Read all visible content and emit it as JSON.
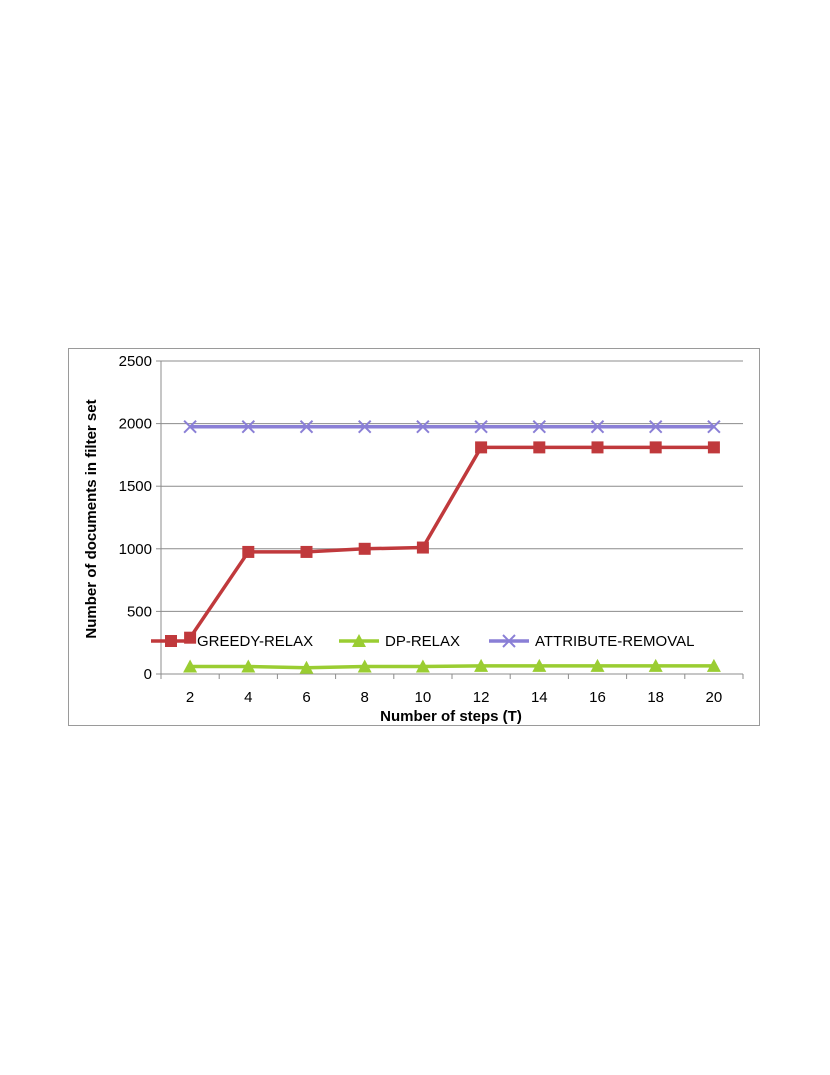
{
  "chart_data": {
    "type": "line",
    "title": "",
    "xlabel": "Number of steps (T)",
    "ylabel": "Number of documents in filter set",
    "x": [
      2,
      4,
      6,
      8,
      10,
      12,
      14,
      16,
      18,
      20
    ],
    "x_tick_labels": [
      "2",
      "4",
      "6",
      "8",
      "10",
      "12",
      "14",
      "16",
      "18",
      "20"
    ],
    "ylim": [
      0,
      2500
    ],
    "y_ticks": [
      0,
      500,
      1000,
      1500,
      2000,
      2500
    ],
    "y_tick_labels": [
      "0",
      "500",
      "1000",
      "1500",
      "2000",
      "2500"
    ],
    "grid": "horizontal",
    "legend_position": "inside-bottom",
    "series": [
      {
        "name": "GREEDY-RELAX",
        "color": "#c0393c",
        "marker": "square",
        "values": [
          290,
          975,
          975,
          1000,
          1010,
          1810,
          1810,
          1810,
          1810,
          1810
        ]
      },
      {
        "name": "DP-RELAX",
        "color": "#9acd32",
        "marker": "triangle",
        "values": [
          60,
          60,
          50,
          60,
          60,
          65,
          65,
          65,
          65,
          65
        ]
      },
      {
        "name": "ATTRIBUTE-REMOVAL",
        "color": "#8a7fd6",
        "marker": "x",
        "values": [
          1975,
          1975,
          1975,
          1975,
          1975,
          1975,
          1975,
          1975,
          1975,
          1975
        ]
      }
    ]
  }
}
